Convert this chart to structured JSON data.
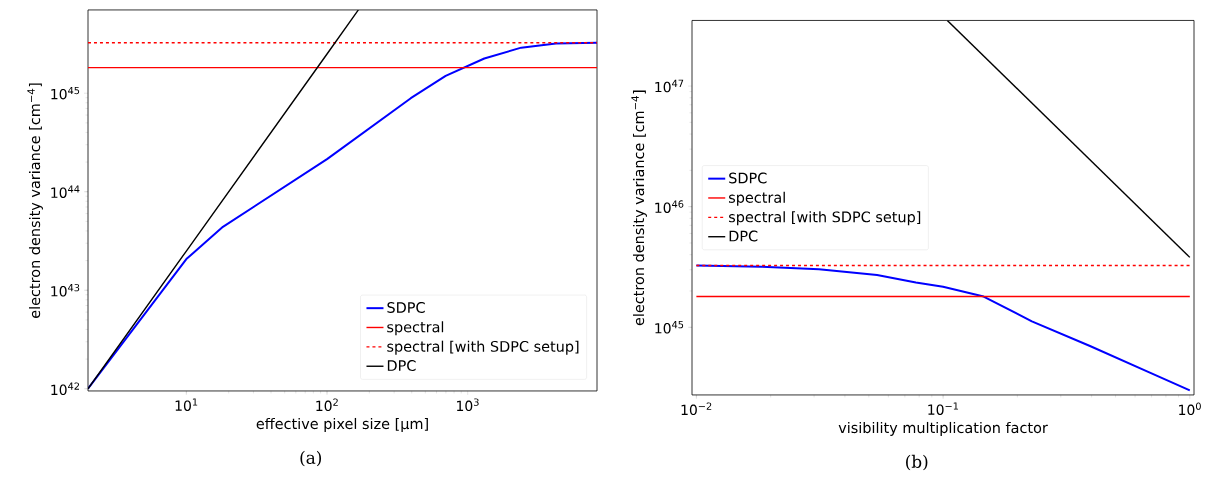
{
  "chart_data": [
    {
      "type": "line",
      "xlabel": "effective pixel size [µm]",
      "ylabel": "electron density variance [cm$^{−4}$]",
      "log": "xy",
      "legend": "bottom right",
      "xlim": [
        2,
        8300
      ],
      "ylim": [
        9.5e+41,
        7e+45
      ],
      "xticks": [
        {
          "value": 10,
          "label": "10$^{1}$"
        },
        {
          "value": 100,
          "label": "10$^{2}$"
        },
        {
          "value": 1000,
          "label": "10$^{3}$"
        }
      ],
      "yticks": [
        {
          "value": 1e+42,
          "label": "10$^{42}$"
        },
        {
          "value": 1e+43,
          "label": "10$^{43}$"
        },
        {
          "value": 1e+44,
          "label": "10$^{44}$"
        },
        {
          "value": 1e+45,
          "label": "10$^{45}$"
        }
      ],
      "series": [
        {
          "name": "SDPC",
          "color": "#0000ff",
          "x": [
            2,
            10,
            18.2,
            100,
            394,
            697,
            1312,
            2400,
            4240,
            8300
          ],
          "values": [
            1e+42,
            2.07e+43,
            4.4e+43,
            2.14e+44,
            8.9e+44,
            1.5e+45,
            2.25e+45,
            2.9e+45,
            3.2e+45,
            3.25e+45
          ]
        },
        {
          "name": "spectral",
          "color": "#ff0000",
          "x": [
            2,
            8300
          ],
          "values": [
            1.82e+45,
            1.82e+45
          ]
        },
        {
          "name": "spectral [with SDPC setup]",
          "color": "#ff0000",
          "line_style": "dashed",
          "x": [
            2,
            8300
          ],
          "values": [
            3.25e+45,
            3.25e+45
          ]
        },
        {
          "name": "DPC",
          "color": "#000000",
          "x": [
            2,
            10,
            100,
            167
          ],
          "values": [
            1e+42,
            2.5e+43,
            2.5e+45,
            7e+45
          ]
        }
      ],
      "annotations": [
        "(a)"
      ]
    },
    {
      "type": "line",
      "xlabel": "visibility multiplication factor",
      "ylabel": "electron density variance [cm$^{−4}$]",
      "log": "xy",
      "legend": "left",
      "xlim": [
        0.0096,
        1.04
      ],
      "ylim": [
        2.75e+44,
        3.5e+47
      ],
      "xticks": [
        {
          "value": 0.01,
          "label": "10$^{−2}$"
        },
        {
          "value": 0.1,
          "label": "10$^{−1}$"
        },
        {
          "value": 1,
          "label": "10$^{0}$"
        }
      ],
      "yticks": [
        {
          "value": 1e+45,
          "label": "10$^{45}$"
        },
        {
          "value": 1e+46,
          "label": "10$^{46}$"
        },
        {
          "value": 1e+47,
          "label": "10$^{47}$"
        }
      ],
      "series": [
        {
          "name": "SDPC",
          "color": "#0000ff",
          "x": [
            0.01,
            0.0183,
            0.0314,
            0.054,
            0.0776,
            0.1,
            0.146,
            0.229,
            0.394,
            0.678,
            1.0
          ],
          "values": [
            3.25e+45,
            3.18e+45,
            3.03e+45,
            2.71e+45,
            2.35e+45,
            2.17e+45,
            1.8e+45,
            1.12e+45,
            7e+44,
            4.27e+44,
            3e+44
          ]
        },
        {
          "name": "spectral",
          "color": "#ff0000",
          "x": [
            0.01,
            1.0
          ],
          "values": [
            1.8e+45,
            1.8e+45
          ]
        },
        {
          "name": "spectral [with SDPC setup]",
          "color": "#ff0000",
          "line_style": "dashed",
          "x": [
            0.01,
            1.0
          ],
          "values": [
            3.25e+45,
            3.25e+45
          ]
        },
        {
          "name": "DPC",
          "color": "#000000",
          "x": [
            0.104,
            1.0
          ],
          "values": [
            3.5e+47,
            3.8e+45
          ]
        }
      ],
      "annotations": [
        "(b)"
      ]
    }
  ]
}
